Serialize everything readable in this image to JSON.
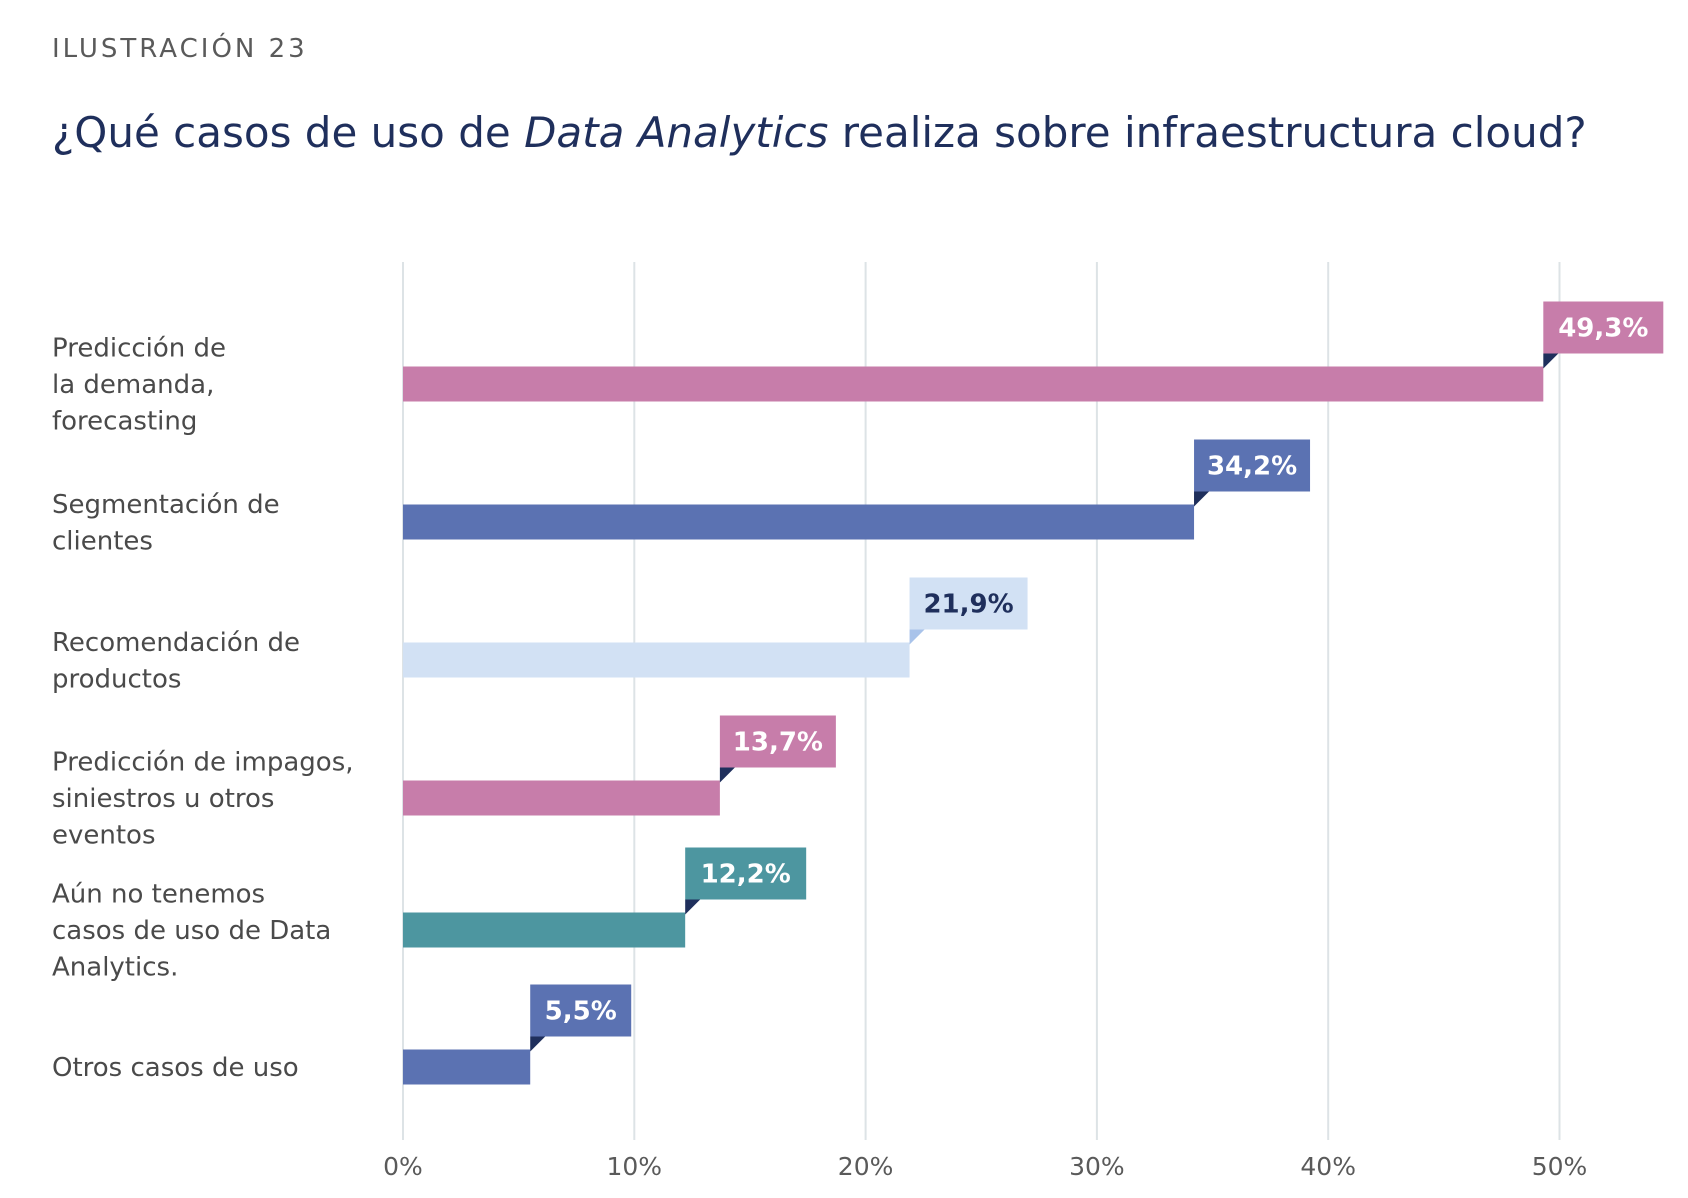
{
  "figure_label": "ILUSTRACIÓN 23",
  "title": {
    "before": "¿Qué casos de uso de ",
    "emphasis": "Data Analytics",
    "after": " realiza sobre infraestructura cloud?"
  },
  "chart_data": {
    "type": "bar",
    "orientation": "horizontal",
    "xlim": [
      0,
      55
    ],
    "x_ticks": [
      0,
      10,
      20,
      30,
      40,
      50
    ],
    "tick_labels": [
      "0%",
      "10%",
      "20%",
      "30%",
      "40%",
      "50%"
    ],
    "grid": true,
    "categories": [
      "Predicción de la demanda, forecasting",
      "Segmentación de clientes",
      "Recomendación de productos",
      "Predicción de impagos, siniestros u otros eventos",
      "Aún no tenemos casos de uso de Data Analytics.",
      "Otros casos de uso"
    ],
    "category_lines": [
      [
        "Predicción de",
        "la demanda,",
        "forecasting"
      ],
      [
        "Segmentación de",
        "clientes"
      ],
      [
        "Recomendación de",
        "productos"
      ],
      [
        "Predicción de impagos,",
        "siniestros u otros",
        "eventos"
      ],
      [
        "Aún no tenemos",
        "casos de uso de Data",
        "Analytics."
      ],
      [
        "Otros casos de uso"
      ]
    ],
    "values": [
      49.3,
      34.2,
      21.9,
      13.7,
      12.2,
      5.5
    ],
    "value_labels": [
      "49,3%",
      "34,2%",
      "21,9%",
      "13,7%",
      "12,2%",
      "5,5%"
    ],
    "colors": [
      "#c77daa",
      "#5b72b2",
      "#d2e1f4",
      "#c77daa",
      "#4d96a0",
      "#5b72b2"
    ],
    "label_text_colors": [
      "#ffffff",
      "#ffffff",
      "#1f2f5c",
      "#ffffff",
      "#ffffff",
      "#ffffff"
    ],
    "grid_color": "#dde3e6",
    "notch_color": "#1f2f5c",
    "light_notch_color": "#a9c3ea"
  }
}
